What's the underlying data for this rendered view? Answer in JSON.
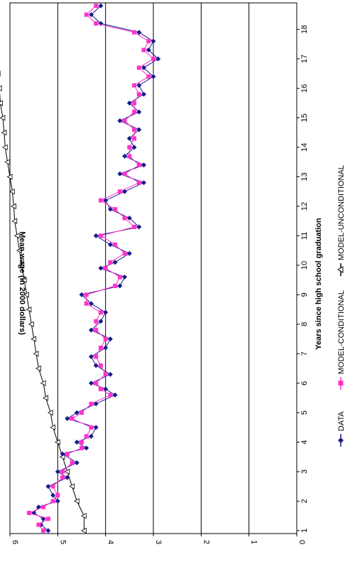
{
  "chart_data": {
    "type": "line",
    "xlabel": "Years since high school graduation",
    "ylabel": "Mean wage (in 2000 dollars)",
    "xlim": [
      0.9,
      18.9
    ],
    "ylim": [
      0,
      6
    ],
    "x_ticks": [
      "1",
      "2",
      "3",
      "4",
      "5",
      "6",
      "7",
      "8",
      "9",
      "10",
      "11",
      "12",
      "13",
      "14",
      "15",
      "16",
      "17",
      "18"
    ],
    "y_ticks": [
      "0",
      "1",
      "2",
      "3",
      "4",
      "5",
      "6"
    ],
    "gridlines": "horizontal",
    "legend_position": "bottom",
    "series": [
      {
        "name": "DATA",
        "color": "#1a1a8c",
        "marker": "diamond",
        "x": [
          1.0,
          1.2,
          1.4,
          1.6,
          1.8,
          2.0,
          2.2,
          2.5,
          2.8,
          3.0,
          3.3,
          3.6,
          3.8,
          4.0,
          4.2,
          4.5,
          4.8,
          5.0,
          5.3,
          5.6,
          5.8,
          6.0,
          6.3,
          6.6,
          6.9,
          7.2,
          7.5,
          7.8,
          8.1,
          8.4,
          8.7,
          9.0,
          9.3,
          9.6,
          9.9,
          10.1,
          10.4,
          10.7,
          11.0,
          11.3,
          11.6,
          11.9,
          12.2,
          12.5,
          12.8,
          13.1,
          13.4,
          13.7,
          14.0,
          14.3,
          14.6,
          14.9,
          15.2,
          15.5,
          15.8,
          16.1,
          16.4,
          16.7,
          17.0,
          17.3,
          17.6,
          17.9,
          18.2,
          18.5,
          18.8
        ],
        "values": [
          5.2,
          5.35,
          5.3,
          5.5,
          5.4,
          5.0,
          5.1,
          5.2,
          4.8,
          5.0,
          4.6,
          4.9,
          4.4,
          4.6,
          4.3,
          4.2,
          4.8,
          4.6,
          4.2,
          3.8,
          4.0,
          4.3,
          3.9,
          4.2,
          4.3,
          4.0,
          3.9,
          4.3,
          4.1,
          4.0,
          4.3,
          4.5,
          3.7,
          3.6,
          4.1,
          3.8,
          3.5,
          3.9,
          4.2,
          3.3,
          3.5,
          3.9,
          4.0,
          3.6,
          3.2,
          3.7,
          3.2,
          3.6,
          3.4,
          3.5,
          3.3,
          3.7,
          3.3,
          3.5,
          3.2,
          3.3,
          3.0,
          3.2,
          2.9,
          3.1,
          3.0,
          3.3,
          4.1,
          4.3,
          4.1
        ]
      },
      {
        "name": "MODEL-CONDITIONAL",
        "color": "#ff33cc",
        "marker": "square",
        "x": [
          1.0,
          1.2,
          1.4,
          1.6,
          1.8,
          2.0,
          2.2,
          2.5,
          2.8,
          3.0,
          3.3,
          3.6,
          3.8,
          4.0,
          4.2,
          4.5,
          4.8,
          5.0,
          5.3,
          5.6,
          5.8,
          6.0,
          6.3,
          6.6,
          6.9,
          7.2,
          7.5,
          7.8,
          8.1,
          8.4,
          8.7,
          9.0,
          9.3,
          9.6,
          9.9,
          10.1,
          10.4,
          10.7,
          11.0,
          11.3,
          11.6,
          11.9,
          12.2,
          12.5,
          12.8,
          13.1,
          13.4,
          13.7,
          14.0,
          14.3,
          14.6,
          14.9,
          15.2,
          15.5,
          15.8,
          16.1,
          16.4,
          16.7,
          17.0,
          17.3,
          17.6,
          17.9,
          18.2,
          18.5,
          18.8
        ],
        "values": [
          5.3,
          5.4,
          5.2,
          5.6,
          5.3,
          5.1,
          5.0,
          5.1,
          4.9,
          4.9,
          4.7,
          4.8,
          4.5,
          4.5,
          4.4,
          4.3,
          4.7,
          4.5,
          4.3,
          3.9,
          4.1,
          4.2,
          4.0,
          4.1,
          4.2,
          4.1,
          4.0,
          4.2,
          4.2,
          4.1,
          4.4,
          4.4,
          3.8,
          3.7,
          4.0,
          3.9,
          3.6,
          3.8,
          4.1,
          3.4,
          3.6,
          3.8,
          4.1,
          3.7,
          3.3,
          3.6,
          3.3,
          3.5,
          3.5,
          3.4,
          3.4,
          3.6,
          3.4,
          3.4,
          3.3,
          3.4,
          3.1,
          3.3,
          3.0,
          3.2,
          3.1,
          3.4,
          4.2,
          4.4,
          4.2
        ]
      },
      {
        "name": "MODEL-UNCONDITIONAL",
        "color": "#000000",
        "marker": "triangle-open",
        "x": [
          1.0,
          1.5,
          2.0,
          2.5,
          3.0,
          3.5,
          4.0,
          4.5,
          5.0,
          5.5,
          6.0,
          6.5,
          7.0,
          7.5,
          8.0,
          8.5,
          9.0,
          9.5,
          10.0,
          10.5,
          11.0,
          11.5,
          12.0,
          12.5,
          13.0,
          13.5,
          14.0,
          14.5,
          15.0,
          15.5,
          16.0,
          16.5,
          17.0,
          17.5,
          18.0,
          18.5,
          18.8
        ],
        "values": [
          4.45,
          4.45,
          4.6,
          4.7,
          4.8,
          4.9,
          5.0,
          5.1,
          5.15,
          5.25,
          5.3,
          5.4,
          5.45,
          5.5,
          5.55,
          5.6,
          5.65,
          5.7,
          5.75,
          5.8,
          5.85,
          5.9,
          5.92,
          5.95,
          6.0,
          6.05,
          6.1,
          6.12,
          6.15,
          6.2,
          6.22,
          6.25,
          6.3,
          6.32,
          6.35,
          6.4,
          6.42
        ]
      }
    ]
  }
}
